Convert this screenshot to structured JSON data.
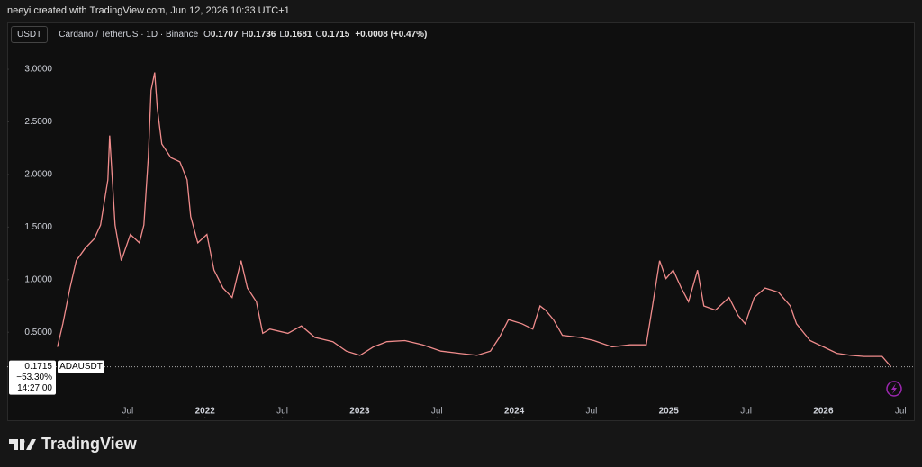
{
  "header": {
    "credit": "neeyi created with TradingView.com, Jun 12, 2026 10:33 UTC+1",
    "currency": "USDT",
    "symbol": "Cardano / TetherUS · 1D · Binance",
    "ohlc": [
      {
        "key": "O",
        "value": "0.1707"
      },
      {
        "key": "H",
        "value": "0.1736"
      },
      {
        "key": "L",
        "value": "0.1681"
      },
      {
        "key": "C",
        "value": "0.1715"
      }
    ],
    "change": "+0.0008 (+0.47%)"
  },
  "footer": {
    "brand": "TradingView"
  },
  "chart_data": {
    "type": "line",
    "color": "#f08c8c",
    "x": [
      2021.045,
      2021.08,
      2021.126,
      2021.167,
      2021.225,
      2021.284,
      2021.324,
      2021.371,
      2021.383,
      2021.418,
      2021.458,
      2021.517,
      2021.575,
      2021.604,
      2021.633,
      2021.651,
      2021.674,
      2021.691,
      2021.72,
      2021.779,
      2021.837,
      2021.884,
      2021.907,
      2021.953,
      2022.012,
      2022.058,
      2022.116,
      2022.175,
      2022.233,
      2022.274,
      2022.332,
      2022.373,
      2022.419,
      2022.536,
      2022.623,
      2022.711,
      2022.827,
      2022.914,
      2023.002,
      2023.089,
      2023.176,
      2023.293,
      2023.409,
      2023.526,
      2023.642,
      2023.759,
      2023.846,
      2023.904,
      2023.963,
      2024.05,
      2024.12,
      2024.167,
      2024.202,
      2024.254,
      2024.312,
      2024.429,
      2024.516,
      2024.633,
      2024.749,
      2024.854,
      2024.895,
      2024.941,
      2024.982,
      2025.029,
      2025.081,
      2025.128,
      2025.186,
      2025.227,
      2025.302,
      2025.39,
      2025.448,
      2025.494,
      2025.553,
      2025.623,
      2025.71,
      2025.786,
      2025.826,
      2025.914,
      2026.001,
      2026.088,
      2026.176,
      2026.263,
      2026.38,
      2026.438
    ],
    "values": [
      0.36,
      0.58,
      0.92,
      1.18,
      1.3,
      1.39,
      1.52,
      1.95,
      2.37,
      1.52,
      1.18,
      1.43,
      1.35,
      1.52,
      2.16,
      2.8,
      2.97,
      2.63,
      2.29,
      2.16,
      2.12,
      1.95,
      1.6,
      1.35,
      1.43,
      1.09,
      0.92,
      0.83,
      1.18,
      0.92,
      0.79,
      0.49,
      0.53,
      0.49,
      0.56,
      0.45,
      0.41,
      0.32,
      0.28,
      0.36,
      0.41,
      0.42,
      0.38,
      0.32,
      0.3,
      0.28,
      0.32,
      0.45,
      0.62,
      0.58,
      0.53,
      0.75,
      0.71,
      0.62,
      0.47,
      0.45,
      0.42,
      0.36,
      0.38,
      0.38,
      0.75,
      1.18,
      1.01,
      1.09,
      0.92,
      0.79,
      1.09,
      0.75,
      0.71,
      0.83,
      0.66,
      0.58,
      0.83,
      0.92,
      0.88,
      0.75,
      0.58,
      0.42,
      0.36,
      0.3,
      0.28,
      0.27,
      0.27,
      0.1715
    ],
    "xlim": [
      2020.72,
      2026.58
    ],
    "ylim": [
      -0.32,
      3.42
    ],
    "yticks": [
      {
        "value": 0.5,
        "label": "0.5000"
      },
      {
        "value": 1,
        "label": "1.0000"
      },
      {
        "value": 1.5,
        "label": "1.5000"
      },
      {
        "value": 2,
        "label": "2.0000"
      },
      {
        "value": 2.5,
        "label": "2.5000"
      },
      {
        "value": 3,
        "label": "3.0000"
      }
    ],
    "xticks": [
      {
        "value": 2021.5,
        "label": "Jul"
      },
      {
        "value": 2022,
        "label": "2022"
      },
      {
        "value": 2022.5,
        "label": "Jul"
      },
      {
        "value": 2023,
        "label": "2023"
      },
      {
        "value": 2023.5,
        "label": "Jul"
      },
      {
        "value": 2024,
        "label": "2024"
      },
      {
        "value": 2024.5,
        "label": "Jul"
      },
      {
        "value": 2025,
        "label": "2025"
      },
      {
        "value": 2025.5,
        "label": "Jul"
      },
      {
        "value": 2026,
        "label": "2026"
      },
      {
        "value": 2026.5,
        "label": "Jul"
      }
    ],
    "last_price": {
      "value": 0.1715,
      "label": "0.1715"
    },
    "change_percent": "−53.30%",
    "countdown": "14:27:00",
    "ticker": "ADAUSDT"
  }
}
